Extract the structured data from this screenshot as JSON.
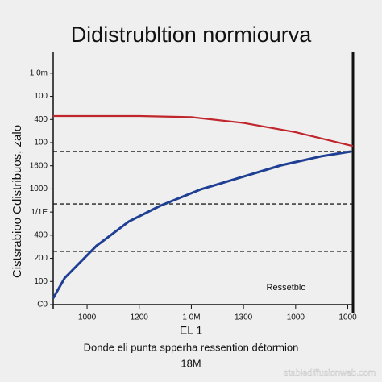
{
  "chart_data": {
    "type": "line",
    "title": "Didistrubltion normiourva",
    "y_label": "Cistsrabioo Cdistribuos, zalo",
    "x_label": "EL 1",
    "annotations": [
      "Ressetblo",
      "Donde eli punta spperha ressention détormion",
      "18M",
      "stablediffusionweb.com"
    ],
    "xlim": [
      0.35,
      6.1
    ],
    "ylim": [
      0,
      10.9
    ],
    "xticks": [
      {
        "value": 1,
        "label": "1000"
      },
      {
        "value": 2,
        "label": "1200"
      },
      {
        "value": 3,
        "label": "1 0M"
      },
      {
        "value": 4,
        "label": "1300"
      },
      {
        "value": 5,
        "label": "1000"
      },
      {
        "value": 6,
        "label": "1000"
      }
    ],
    "yticks": [
      {
        "value": 0,
        "label": "C0"
      },
      {
        "value": 1,
        "label": "100"
      },
      {
        "value": 2,
        "label": "200"
      },
      {
        "value": 3,
        "label": "400"
      },
      {
        "value": 4,
        "label": "1/1E"
      },
      {
        "value": 5,
        "label": "1000"
      },
      {
        "value": 6,
        "label": "1600"
      },
      {
        "value": 7,
        "label": "100"
      },
      {
        "value": 8,
        "label": "400"
      },
      {
        "value": 9,
        "label": "100"
      },
      {
        "value": 10,
        "label": "1 0m"
      }
    ],
    "hlines": [
      6.62,
      4.35,
      2.3
    ],
    "series": [
      {
        "color": "#c0262b",
        "x": [
          0.35,
          1,
          2,
          3,
          4,
          5,
          6.1
        ],
        "values": [
          8.15,
          8.15,
          8.15,
          8.1,
          7.85,
          7.45,
          6.85
        ]
      },
      {
        "color": "#1f3f94",
        "x": [
          0.35,
          0.57,
          1.18,
          1.8,
          2.41,
          3.18,
          3.95,
          4.72,
          5.49,
          6.07
        ],
        "values": [
          0.28,
          1.15,
          2.54,
          3.59,
          4.28,
          4.98,
          5.5,
          6.02,
          6.41,
          6.62
        ]
      }
    ]
  }
}
